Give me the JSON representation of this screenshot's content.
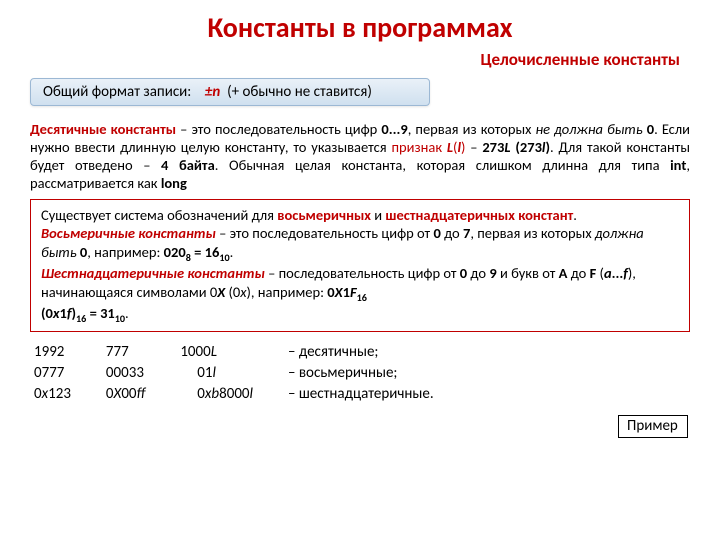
{
  "title": "Константы в программах",
  "subtitle": "Целочисленные константы",
  "format": {
    "label": "Общий формат записи:",
    "n": "±n",
    "note": "(+ обычно не ставится)"
  },
  "block1": {
    "p1a": "Десятичные константы",
    "p1b": " – это последовательность цифр ",
    "p1c": "0...9",
    "p1d": ", первая из которых ",
    "p1e": "не должна быть",
    "p1f": " 0",
    "p1g": ". Если нужно ввести длинную целую константу, то указывается ",
    "p1h": "признак ",
    "p1i": "L",
    "p1j": "(",
    "p1k": "l",
    "p1l": ")",
    "p1m": " – ",
    "p1n": "273",
    "p1o": "L",
    "p1p": " (273",
    "p1q": "l",
    "p1r": ")",
    "p1s": ". Для такой константы будет отведено – ",
    "p1t": "4 байта",
    "p1u": ". Обычная целая константа, которая слишком длинна для типа ",
    "p1v": "int",
    "p1w": ", рассматривается как ",
    "p1x": "long"
  },
  "block2": {
    "l1a": "Существует система обозначений для ",
    "l1b": "восьмеричных",
    "l1c": " и ",
    "l1d": "шестнадцатеричных констант",
    "l1e": ".",
    "l2a": "Восьмеричные константы",
    "l2b": " – это последовательность цифр от ",
    "l2c": "0",
    "l2d": " до ",
    "l2e": "7",
    "l2f": ", первая из которых ",
    "l2g": "должна быть",
    "l2h": " 0",
    "l2i": ", например: ",
    "l2j": "020",
    "l2k": "8",
    "l2l": " = 16",
    "l2m": "10",
    "l2n": ".",
    "l3a": "Шестнадцатеричные константы",
    "l3b": " – последовательность цифр от ",
    "l3c": "0",
    "l3d": " до ",
    "l3e": "9",
    "l3f": " и букв от ",
    "l3g": "A",
    "l3h": " до ",
    "l3i": "F",
    "l3j": " (",
    "l3k": "a",
    "l3l": "...",
    "l3m": "f",
    "l3n": "), начинающаяся символами 0",
    "l3o": "Х",
    "l3p": " (0",
    "l3q": "х",
    "l3r": "), например: ",
    "l3s": "0",
    "l3t": "Х",
    "l3u": "1",
    "l3v": "F",
    "l3w": "16",
    "l4a": "(0",
    "l4b": "х",
    "l4c": "1",
    "l4d": "f",
    "l4e": ")",
    "l4f": "16",
    "l4g": " =  31",
    "l4h": "10",
    "l4i": "."
  },
  "exampleLabel": "Пример",
  "ex": {
    "r1c1": "1992",
    "r1c2": "777",
    "r1c3a": "1000",
    "r1c3b": "L",
    "r1c4": "– десятичные;",
    "r2c1": "0777",
    "r2c2": "00033",
    "r2c3a": "01",
    "r2c3b": "l",
    "r2c4": "– восьмеричные;",
    "r3c1a": "0",
    "r3c1b": "x",
    "r3c1c": "123",
    "r3c2a": "0",
    "r3c2b": "X",
    "r3c2c": "00",
    "r3c2d": "ff",
    "r3c3a": "0",
    "r3c3b": "xb",
    "r3c3c": "8000",
    "r3c3d": "l",
    "r3c4": "– шестнадцатеричные."
  }
}
